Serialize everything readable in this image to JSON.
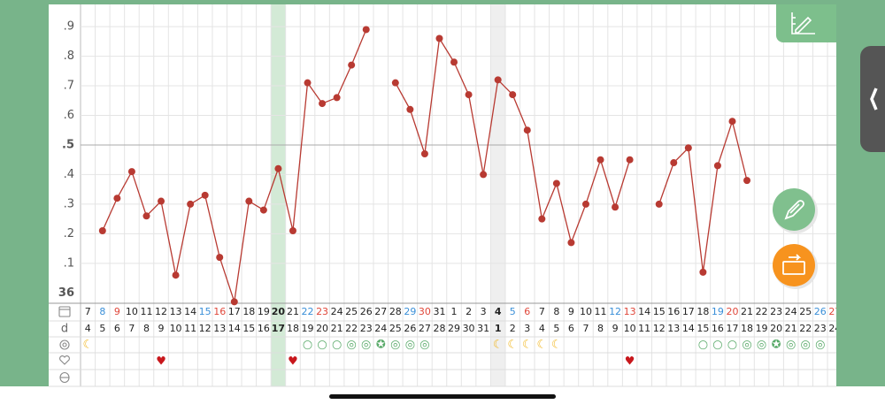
{
  "chart_data": {
    "type": "line",
    "ylim": [
      35.965,
      36.975
    ],
    "yticks": [
      36,
      {
        "value": 36.1,
        "label": ".1"
      },
      {
        "value": 36.2,
        "label": ".2"
      },
      {
        "value": 36.3,
        "label": ".3"
      },
      {
        "value": 36.4,
        "label": ".4"
      },
      {
        "value": 36.5,
        "label": ".5"
      },
      {
        "value": 36.6,
        "label": ".6"
      },
      {
        "value": 36.7,
        "label": ".7"
      },
      {
        "value": 36.8,
        "label": ".8"
      },
      {
        "value": 36.9,
        "label": ".9"
      }
    ],
    "grid": true,
    "categories": [
      7,
      8,
      9,
      10,
      11,
      12,
      13,
      14,
      15,
      16,
      17,
      18,
      19,
      20,
      21,
      22,
      23,
      24,
      25,
      26,
      27,
      28,
      29,
      30,
      31,
      1,
      2,
      3,
      4,
      5,
      6,
      7,
      8,
      9,
      10,
      11,
      12,
      13,
      14,
      15,
      16,
      17,
      18,
      19,
      20,
      21,
      22,
      23,
      24,
      25,
      26,
      27
    ],
    "category_colors": [
      "#222",
      "#3a8fd8",
      "#e0473a",
      "#222",
      "#222",
      "#222",
      "#222",
      "#222",
      "#3a8fd8",
      "#e0473a",
      "#222",
      "#222",
      "#222",
      "#222",
      "#222",
      "#3a8fd8",
      "#e0473a",
      "#222",
      "#222",
      "#222",
      "#222",
      "#222",
      "#3a8fd8",
      "#e0473a",
      "#222",
      "#222",
      "#222",
      "#222",
      "#222",
      "#3a8fd8",
      "#e0473a",
      "#222",
      "#222",
      "#222",
      "#222",
      "#222",
      "#3a8fd8",
      "#e0473a",
      "#222",
      "#222",
      "#222",
      "#222",
      "#222",
      "#3a8fd8",
      "#e0473a",
      "#222",
      "#222",
      "#222",
      "#222",
      "#222",
      "#3a8fd8",
      "#e0473a"
    ],
    "day_label": "d",
    "cycle_days": [
      4,
      5,
      6,
      7,
      8,
      9,
      10,
      11,
      12,
      13,
      14,
      15,
      16,
      17,
      18,
      19,
      20,
      21,
      22,
      23,
      24,
      25,
      26,
      27,
      28,
      29,
      30,
      31,
      1,
      2,
      3,
      4,
      5,
      6,
      7,
      8,
      9,
      10,
      11,
      12,
      13,
      14,
      15,
      16,
      17,
      18,
      19,
      20,
      21,
      22,
      23,
      24
    ],
    "symbols": [
      "☾",
      null,
      null,
      null,
      null,
      null,
      null,
      null,
      null,
      null,
      null,
      null,
      null,
      null,
      null,
      "○",
      "○",
      "○",
      "◎",
      "◎",
      "✪",
      "◎",
      "◎",
      "◎",
      null,
      null,
      null,
      null,
      "☾",
      "☾",
      "☾",
      "☾",
      "☾",
      null,
      null,
      null,
      null,
      null,
      null,
      null,
      null,
      null,
      "○",
      "○",
      "○",
      "◎",
      "◎",
      "✪",
      "◎",
      "◎",
      "◎",
      null
    ],
    "hearts": [
      null,
      null,
      null,
      null,
      null,
      "♥",
      null,
      null,
      null,
      null,
      null,
      null,
      null,
      null,
      "♥",
      null,
      null,
      null,
      null,
      null,
      null,
      null,
      null,
      null,
      null,
      null,
      null,
      null,
      null,
      null,
      null,
      null,
      null,
      null,
      null,
      null,
      null,
      "♥",
      null,
      null,
      null,
      null,
      null,
      null,
      null,
      null,
      null,
      null,
      null,
      null,
      null,
      null
    ],
    "symbol_colors": {
      "☾": "#f1b51c",
      "○": "#5aaa6a",
      "◎": "#5aaa6a",
      "✪": "#5aaa6a",
      "♥": "#c8171c"
    },
    "series": [
      {
        "color": "#b83a32",
        "values": [
          null,
          36.21,
          36.32,
          36.41,
          36.26,
          36.31,
          36.06,
          36.3,
          36.33,
          36.12,
          35.97,
          36.31,
          36.28,
          36.42,
          36.21,
          36.71,
          36.64,
          36.66,
          36.77,
          36.89,
          null,
          36.71,
          36.62,
          36.47,
          36.86,
          36.78,
          36.67,
          36.4,
          36.72,
          36.67,
          36.55,
          36.25,
          36.37,
          36.17,
          36.3,
          36.45,
          36.29,
          36.45,
          null,
          36.3,
          36.44,
          36.49,
          36.07,
          36.43,
          36.58,
          36.38,
          null,
          null,
          null,
          null,
          null,
          null
        ]
      }
    ]
  }
}
